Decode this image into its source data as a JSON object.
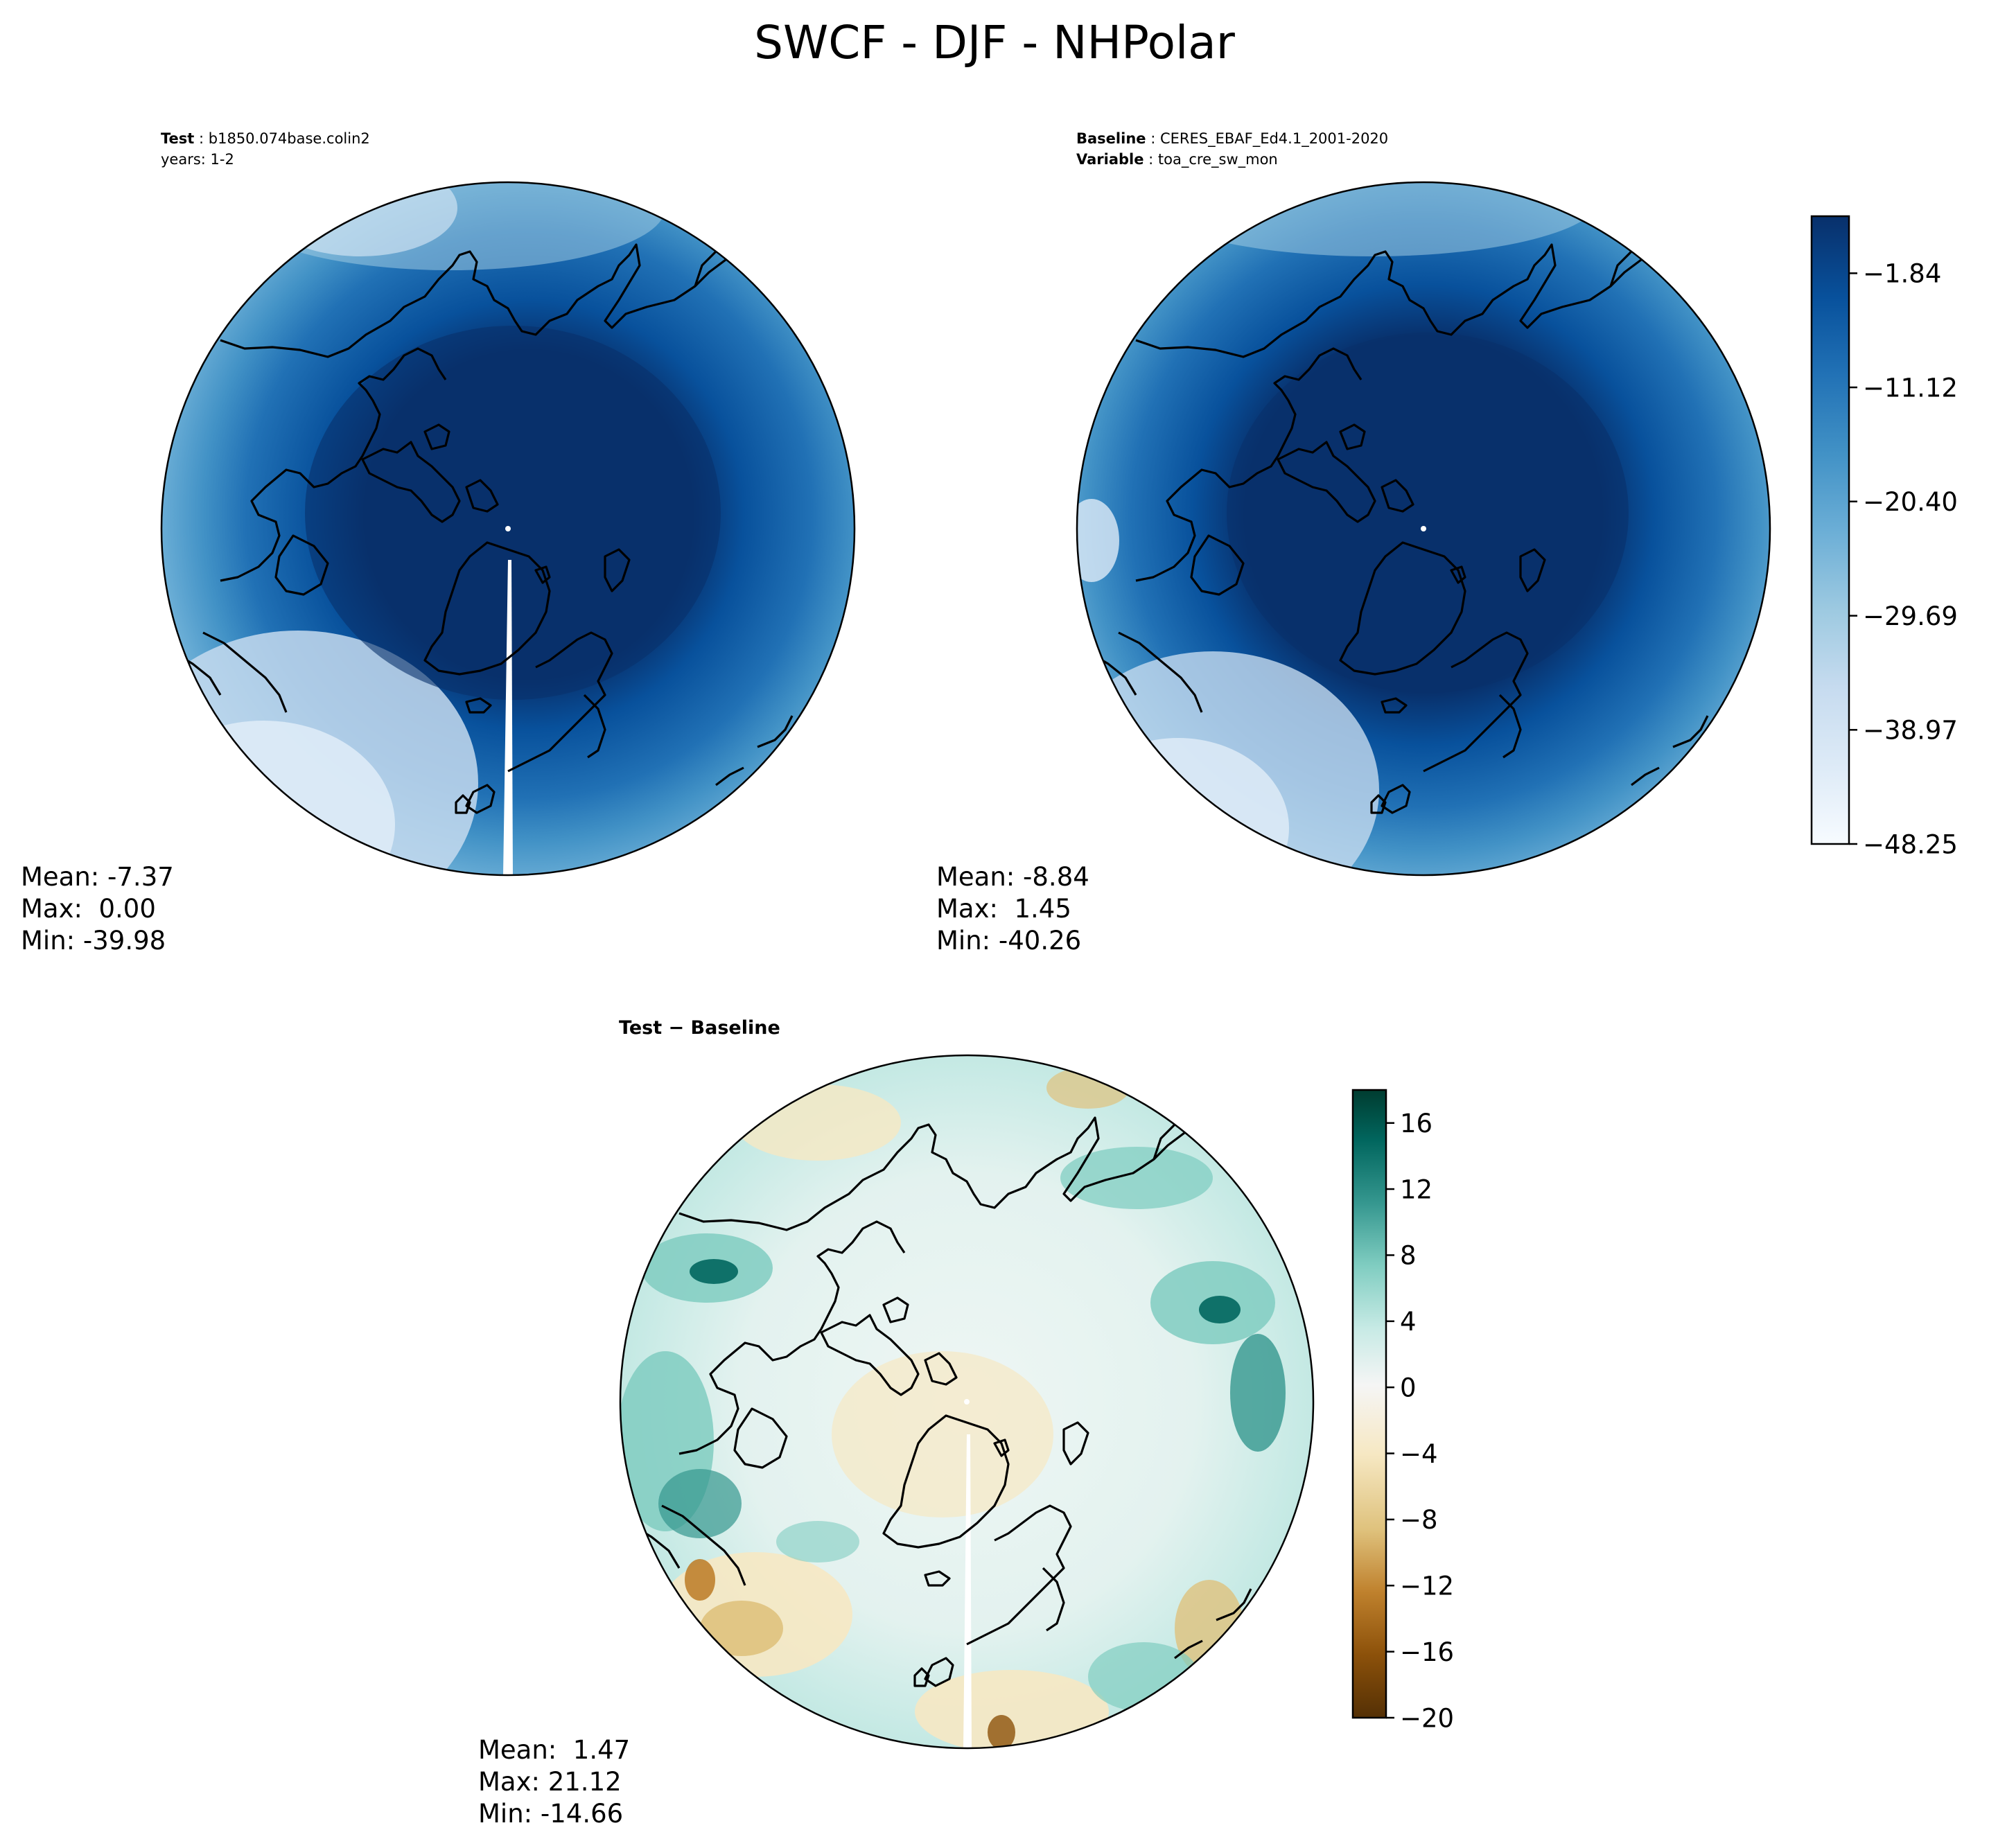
{
  "figure": {
    "title": "SWCF - DJF - NHPolar"
  },
  "panels": [
    {
      "id": "test",
      "label_key": "Test",
      "label_value": "b1850.074base.colin2",
      "line2_key": "",
      "line2_value": "years: 1-2",
      "stats": {
        "mean": "Mean: -7.37",
        "max": "Max:  0.00",
        "min": "Min: -39.98"
      }
    },
    {
      "id": "baseline",
      "label_key": "Baseline",
      "label_value": "CERES_EBAF_Ed4.1_2001-2020",
      "line2_key": "Variable",
      "line2_value": "toa_cre_sw_mon",
      "stats": {
        "mean": "Mean: -8.84",
        "max": "Max:  1.45",
        "min": "Min: -40.26"
      }
    },
    {
      "id": "diff",
      "title": "Test − Baseline",
      "stats": {
        "mean": "Mean:  1.47",
        "max": "Max: 21.12",
        "min": "Min: -14.66"
      }
    }
  ],
  "chart_data": [
    {
      "type": "heatmap",
      "projection": "north-polar-stereographic",
      "variable": "SWCF",
      "colormap": "Blues",
      "colors": [
        "#f7fbff",
        "#deebf7",
        "#c6dbef",
        "#9ecae1",
        "#6baed6",
        "#4292c6",
        "#2171b5",
        "#08519c",
        "#08306b"
      ],
      "colorbar": {
        "ticks": [
          "−1.84",
          "−11.12",
          "−20.40",
          "−29.69",
          "−38.97",
          "−48.25"
        ],
        "range": [
          -48.25,
          2.8
        ]
      },
      "panels": [
        "Test",
        "Baseline"
      ]
    },
    {
      "type": "heatmap",
      "projection": "north-polar-stereographic",
      "colormap": "BrBG",
      "colors": [
        "#543005",
        "#8c510a",
        "#bf812d",
        "#dfc27d",
        "#f6e8c3",
        "#f5f5f5",
        "#c7eae5",
        "#80cdc1",
        "#35978f",
        "#01665e",
        "#003c30"
      ],
      "colorbar": {
        "ticks": [
          "16",
          "12",
          "8",
          "4",
          "0",
          "−4",
          "−8",
          "−12",
          "−16",
          "−20"
        ],
        "range": [
          -20,
          18
        ]
      },
      "panels": [
        "Test − Baseline"
      ]
    }
  ]
}
